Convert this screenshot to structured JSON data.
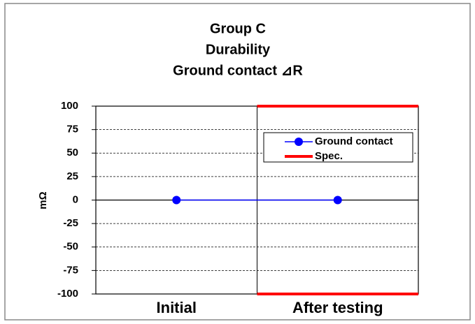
{
  "chart_data": {
    "type": "line",
    "title": [
      "Group C",
      "Durability",
      "Ground contact ⊿R"
    ],
    "ylabel": "mΩ",
    "categories": [
      "Initial",
      "After testing"
    ],
    "series": [
      {
        "name": "Ground contact",
        "color": "#0000ff",
        "values": [
          0,
          0
        ]
      }
    ],
    "spec": {
      "name": "Spec.",
      "color": "#ff0000",
      "upper": [
        null,
        100
      ],
      "lower": [
        null,
        -100
      ]
    },
    "ylim": [
      -100,
      100
    ],
    "yticks": [
      -100,
      -75,
      -50,
      -25,
      0,
      25,
      50,
      75,
      100
    ],
    "grid": true,
    "legend": "upper right"
  }
}
